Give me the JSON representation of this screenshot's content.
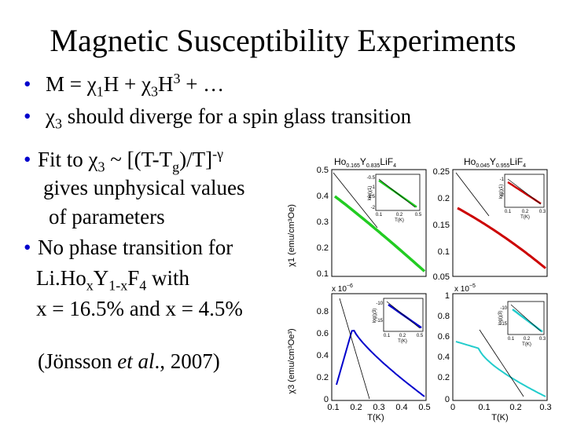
{
  "slide": {
    "title": "Magnetic Susceptibility Experiments",
    "bullet1": {
      "prefix": "M = ",
      "chi": "χ",
      "sub1": "1",
      "mid": "H + ",
      "chi2": "χ",
      "sub3": "3",
      "h": "H",
      "sup3": "3",
      "tail": " + …"
    },
    "bullet2": {
      "chi": "χ",
      "sub3": "3",
      "text": " should diverge for a spin glass transition"
    },
    "bullet3": {
      "a": "Fit to ",
      "chi": "χ",
      "sub3": "3",
      "b": " ~ [(T-T",
      "subg": "g",
      "c": ")/T]",
      "sup": "-γ",
      "line2": "gives unphysical values",
      "line3": "of parameters"
    },
    "bullet4": {
      "line1": "No phase transition for",
      "li": "Li.Ho",
      "x1": "x",
      "y": "Y",
      "sub": "1-x",
      "f": "F",
      "four": "4",
      "with": " with",
      "line3": "x = 16.5% and x = 4.5%"
    },
    "citation": {
      "open": "(Jönsson ",
      "etal": "et al",
      "close": "., 2007)"
    }
  },
  "figure": {
    "panel_a_title": {
      "base": "Ho",
      "s1": "0.165",
      "mid": "Y",
      "s2": "0.835",
      "end": "LiF",
      "s3": "4"
    },
    "panel_b_title": {
      "base": "Ho",
      "s1": "0.045",
      "mid": "Y",
      "s2": "0.955",
      "end": "LiF",
      "s3": "4"
    },
    "ylabel_top": "χ1 (emu/cm³Oe)",
    "ylabel_bottom": "χ3 (emu/cm³Oe³)",
    "xlabel": "T(K)",
    "scale_bl": "x 10",
    "scale_bl_exp": "−6",
    "scale_br": "x 10",
    "scale_br_exp": "−5",
    "inset_ylabel_a": "log(χ1)",
    "inset_ylabel_b": "log(χ1)",
    "inset_ylabel_c": "log(χ3)",
    "inset_ylabel_d": "log(χ3)",
    "inset_xlabel": "T(K)",
    "colors": {
      "green": "#22cc22",
      "red": "#cc0000",
      "blue": "#0000cc",
      "cyan": "#22cccc"
    }
  },
  "chart_data": [
    {
      "type": "scatter",
      "panel": "top-left",
      "ytick_labels": [
        "0.5",
        "0.4",
        "0.3",
        "0.2",
        "0.1"
      ],
      "inset": {
        "ytick_labels": [
          "-0.5",
          "-1",
          "-1.5",
          "-2"
        ],
        "xtick_labels": [
          "0.1",
          "0.2",
          "0.5"
        ]
      }
    },
    {
      "type": "scatter",
      "panel": "top-right",
      "ytick_labels": [
        "0.25",
        "0.2",
        "0.15",
        "0.1",
        "0.05"
      ],
      "inset": {
        "ytick_labels": [
          "-1",
          "-2"
        ],
        "xtick_labels": [
          "0.1",
          "0.2",
          "0.3"
        ]
      }
    },
    {
      "type": "scatter",
      "panel": "bottom-left",
      "ytick_labels": [
        "0.8",
        "0.6",
        "0.4",
        "0.2",
        "0"
      ],
      "xtick_labels": [
        "0.1",
        "0.2",
        "0.3",
        "0.4",
        "0.5"
      ],
      "inset": {
        "ytick_labels": [
          "-10",
          "-15"
        ],
        "xtick_labels": [
          "0.1",
          "0.2",
          "0.5"
        ]
      }
    },
    {
      "type": "scatter",
      "panel": "bottom-right",
      "ytick_labels": [
        "1",
        "0.8",
        "0.6",
        "0.4",
        "0.2",
        "0"
      ],
      "xtick_labels": [
        "0",
        "0.1",
        "0.2",
        "0.3"
      ],
      "inset": {
        "ytick_labels": [
          "-10",
          "-15"
        ],
        "xtick_labels": [
          "0.1",
          "0.2",
          "0.3"
        ]
      }
    }
  ]
}
